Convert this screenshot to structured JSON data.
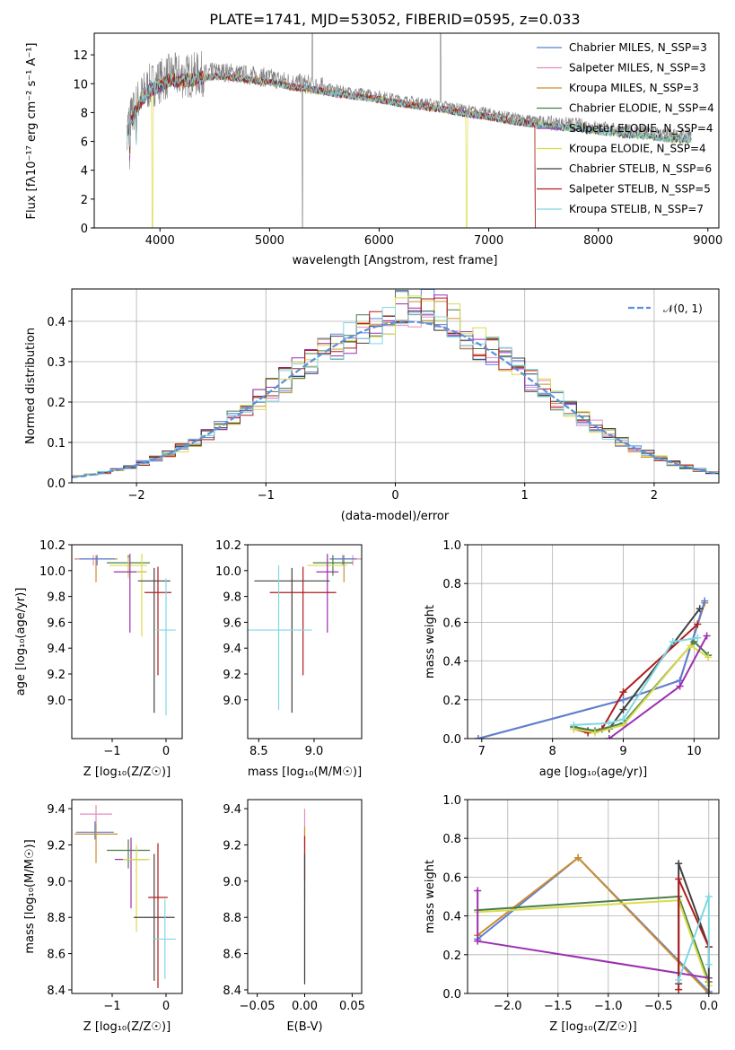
{
  "title": "PLATE=1741, MJD=53052, FIBERID=0595, z=0.033",
  "colors": {
    "Chabrier MILES": "#5b7fd9",
    "Salpeter MILES": "#e68cc0",
    "Kroupa MILES": "#cc8d2e",
    "Chabrier ELODIE": "#4a7d4a",
    "Salpeter ELODIE": "#9c2fb0",
    "Kroupa ELODIE": "#d9dc4a",
    "Chabrier STELIB": "#404040",
    "Salpeter STELIB": "#b01c1c",
    "Kroupa STELIB": "#7fd8e3",
    "data": "#808080",
    "normal": "#5b8fd9"
  },
  "chart_data": [
    {
      "id": "spectrum",
      "type": "line",
      "xlabel": "wavelength [Angstrom, rest frame]",
      "ylabel": "Flux [fλ10⁻¹⁷ erg cm⁻² s⁻¹ A⁻¹]",
      "xlim": [
        3400,
        9100
      ],
      "ylim": [
        0,
        13.5
      ],
      "xticks": [
        4000,
        5000,
        6000,
        7000,
        8000,
        9000
      ],
      "yticks": [
        0,
        2,
        4,
        6,
        8,
        10,
        12
      ],
      "legend_position": "top-right",
      "legend": [
        "Chabrier MILES, N_SSP=3",
        "Salpeter MILES, N_SSP=3",
        "Kroupa MILES, N_SSP=3",
        "Chabrier ELODIE, N_SSP=4",
        "Salpeter ELODIE, N_SSP=4",
        "Kroupa ELODIE, N_SSP=4",
        "Chabrier STELIB, N_SSP=6",
        "Salpeter STELIB, N_SSP=5",
        "Kroupa STELIB, N_SSP=7"
      ],
      "data_spectrum": {
        "x": [
          3700,
          3800,
          3900,
          4000,
          4100,
          4200,
          4300,
          4400,
          4500,
          4600,
          4800,
          5000,
          5200,
          5400,
          5600,
          5800,
          6000,
          6200,
          6400,
          6600,
          6800,
          7000,
          7200,
          7400,
          7600,
          7800,
          8000,
          8200,
          8400,
          8600,
          8800
        ],
        "y": [
          7.0,
          8.8,
          9.8,
          10.2,
          10.6,
          10.5,
          10.6,
          10.7,
          10.8,
          10.8,
          10.6,
          10.4,
          10.1,
          9.9,
          9.6,
          9.4,
          9.2,
          8.9,
          8.7,
          8.5,
          8.2,
          8.0,
          7.7,
          7.5,
          7.3,
          7.2,
          7.0,
          6.8,
          6.7,
          6.5,
          6.4
        ]
      },
      "model_cutoffs": {
        "Salpeter STELIB": 7420,
        "Kroupa MILES": 7420,
        "Chabrier MILES": 7420,
        "Salpeter MILES": 7420
      }
    },
    {
      "id": "residuals",
      "type": "histogram",
      "xlabel": "(data-model)/error",
      "ylabel": "Normed distribution",
      "xlim": [
        -2.5,
        2.5
      ],
      "ylim": [
        0,
        0.48
      ],
      "xticks": [
        -2,
        -1,
        0,
        1,
        2
      ],
      "yticks": [
        0.0,
        0.1,
        0.2,
        0.3,
        0.4
      ],
      "legend": [
        "𝒩(0, 1)"
      ],
      "legend_position": "top-right"
    },
    {
      "id": "Z-age",
      "type": "errorbar",
      "xlabel": "Z [log10(Z/Z☉)]",
      "ylabel": "age [log10(age/yr)]",
      "xlim": [
        -1.75,
        0.3
      ],
      "ylim": [
        8.7,
        10.2
      ],
      "xticks": [
        -1,
        0
      ],
      "yticks": [
        9.0,
        9.2,
        9.4,
        9.6,
        9.8,
        10.0,
        10.2
      ],
      "points": [
        {
          "model": "Kroupa MILES",
          "x": -1.3,
          "y": 10.09,
          "xerr": 0.4,
          "yerr": [
            0.18,
            0.03
          ]
        },
        {
          "model": "Salpeter MILES",
          "x": -1.35,
          "y": 10.09,
          "xerr": 0.3,
          "yerr": [
            0.05,
            0.03
          ]
        },
        {
          "model": "Chabrier MILES",
          "x": -1.28,
          "y": 10.09,
          "xerr": 0.33,
          "yerr": [
            0.05,
            0.03
          ]
        },
        {
          "model": "Chabrier ELODIE",
          "x": -0.7,
          "y": 10.06,
          "xerr": 0.4,
          "yerr": [
            0.1,
            0.06
          ]
        },
        {
          "model": "Kroupa ELODIE",
          "x": -0.7,
          "y": 10.04,
          "xerr": 0.35,
          "yerr": [
            0.1,
            0.06
          ]
        },
        {
          "model": "Salpeter ELODIE",
          "x": -0.67,
          "y": 9.99,
          "xerr": 0.3,
          "yerr": [
            0.47,
            0.14
          ]
        },
        {
          "model": "Kroupa ELODIE",
          "x": -0.45,
          "y": 9.99,
          "xerr": 0.1,
          "yerr": [
            0.5,
            0.14
          ]
        },
        {
          "model": "Chabrier STELIB",
          "x": -0.22,
          "y": 9.92,
          "xerr": 0.3,
          "yerr": [
            1.02,
            0.1
          ]
        },
        {
          "model": "Salpeter STELIB",
          "x": -0.15,
          "y": 9.83,
          "xerr": 0.25,
          "yerr": [
            0.64,
            0.2
          ]
        },
        {
          "model": "Kroupa STELIB",
          "x": 0.0,
          "y": 9.54,
          "xerr": 0.18,
          "yerr": [
            0.66,
            0.4
          ]
        }
      ]
    },
    {
      "id": "mass-age",
      "type": "errorbar",
      "xlabel": "mass [log10(M/M☉)]",
      "ylabel": "",
      "xlim": [
        8.4,
        9.43
      ],
      "ylim": [
        8.7,
        10.2
      ],
      "xticks": [
        8.5,
        9.0
      ],
      "yticks": [
        9.0,
        9.2,
        9.4,
        9.6,
        9.8,
        10.0,
        10.2
      ],
      "points": [
        {
          "model": "Salpeter MILES",
          "x": 9.35,
          "y": 10.09,
          "xerr": 0.12,
          "yerr": [
            0.05,
            0.03
          ]
        },
        {
          "model": "Kroupa MILES",
          "x": 9.27,
          "y": 10.09,
          "xerr": 0.12,
          "yerr": [
            0.18,
            0.03
          ]
        },
        {
          "model": "Chabrier MILES",
          "x": 9.26,
          "y": 10.09,
          "xerr": 0.12,
          "yerr": [
            0.05,
            0.03
          ]
        },
        {
          "model": "Chabrier ELODIE",
          "x": 9.17,
          "y": 10.06,
          "xerr": 0.18,
          "yerr": [
            0.1,
            0.06
          ]
        },
        {
          "model": "Kroupa ELODIE",
          "x": 9.12,
          "y": 10.04,
          "xerr": 0.18,
          "yerr": [
            0.1,
            0.06
          ]
        },
        {
          "model": "Salpeter ELODIE",
          "x": 9.12,
          "y": 9.99,
          "xerr": 0.1,
          "yerr": [
            0.47,
            0.14
          ]
        },
        {
          "model": "Chabrier STELIB",
          "x": 8.8,
          "y": 9.92,
          "xerr": 0.34,
          "yerr": [
            1.02,
            0.1
          ]
        },
        {
          "model": "Salpeter STELIB",
          "x": 8.9,
          "y": 9.83,
          "xerr": 0.3,
          "yerr": [
            0.64,
            0.2
          ]
        },
        {
          "model": "Kroupa STELIB",
          "x": 8.68,
          "y": 9.54,
          "xerr": 0.3,
          "yerr": [
            0.62,
            0.5
          ]
        }
      ]
    },
    {
      "id": "age-weight",
      "type": "line",
      "xlabel": "age [log10(age/yr)]",
      "ylabel": "mass weight",
      "xlim": [
        6.8,
        10.35
      ],
      "ylim": [
        0,
        1.0
      ],
      "xticks": [
        7,
        8,
        9,
        10
      ],
      "yticks": [
        0.0,
        0.2,
        0.4,
        0.6,
        0.8,
        1.0
      ],
      "series": [
        {
          "model": "Kroupa MILES",
          "x": [
            6.95,
            9.0,
            9.8,
            10.15
          ],
          "y": [
            0.0,
            0.2,
            0.3,
            0.7
          ]
        },
        {
          "model": "Chabrier MILES",
          "x": [
            6.95,
            9.0,
            9.8,
            10.15
          ],
          "y": [
            0.0,
            0.2,
            0.3,
            0.71
          ]
        },
        {
          "model": "Chabrier STELIB",
          "x": [
            8.3,
            8.5,
            8.8,
            9.0,
            10.08
          ],
          "y": [
            0.06,
            0.04,
            0.05,
            0.15,
            0.67
          ]
        },
        {
          "model": "Salpeter STELIB",
          "x": [
            8.3,
            8.5,
            8.7,
            9.0,
            10.05
          ],
          "y": [
            0.05,
            0.03,
            0.05,
            0.24,
            0.59
          ]
        },
        {
          "model": "Chabrier ELODIE",
          "x": [
            8.3,
            8.6,
            9.0,
            10.0,
            10.2
          ],
          "y": [
            0.06,
            0.04,
            0.08,
            0.5,
            0.43
          ]
        },
        {
          "model": "Kroupa ELODIE",
          "x": [
            8.3,
            8.6,
            9.0,
            9.95,
            10.2
          ],
          "y": [
            0.05,
            0.03,
            0.07,
            0.48,
            0.42
          ]
        },
        {
          "model": "Salpeter ELODIE",
          "x": [
            8.8,
            9.8,
            10.18
          ],
          "y": [
            0.0,
            0.27,
            0.53
          ]
        },
        {
          "model": "Kroupa STELIB",
          "x": [
            8.3,
            8.8,
            9.0,
            9.7,
            10.05
          ],
          "y": [
            0.07,
            0.08,
            0.1,
            0.5,
            0.52
          ]
        }
      ]
    },
    {
      "id": "Z-mass",
      "type": "errorbar",
      "xlabel": "Z [log10(Z/Z☉)]",
      "ylabel": "mass [log10(M/M☉)]",
      "xlim": [
        -1.75,
        0.3
      ],
      "ylim": [
        8.38,
        9.45
      ],
      "xticks": [
        -1,
        0
      ],
      "yticks": [
        8.4,
        8.6,
        8.8,
        9.0,
        9.2,
        9.4
      ],
      "points": [
        {
          "model": "Salpeter MILES",
          "x": -1.3,
          "y": 9.37,
          "xerr": 0.3,
          "yerr": [
            0.05,
            0.05
          ]
        },
        {
          "model": "Chabrier MILES",
          "x": -1.32,
          "y": 9.27,
          "xerr": 0.35,
          "yerr": [
            0.04,
            0.06
          ]
        },
        {
          "model": "Kroupa MILES",
          "x": -1.3,
          "y": 9.26,
          "xerr": 0.4,
          "yerr": [
            0.16,
            0.06
          ]
        },
        {
          "model": "Chabrier ELODIE",
          "x": -0.7,
          "y": 9.17,
          "xerr": 0.4,
          "yerr": [
            0.1,
            0.06
          ]
        },
        {
          "model": "Salpeter ELODIE",
          "x": -0.65,
          "y": 9.12,
          "xerr": 0.3,
          "yerr": [
            0.27,
            0.12
          ]
        },
        {
          "model": "Kroupa ELODIE",
          "x": -0.55,
          "y": 9.12,
          "xerr": 0.25,
          "yerr": [
            0.4,
            0.08
          ]
        },
        {
          "model": "Chabrier STELIB",
          "x": -0.22,
          "y": 8.8,
          "xerr": 0.38,
          "yerr": [
            0.35,
            0.35
          ]
        },
        {
          "model": "Salpeter STELIB",
          "x": -0.15,
          "y": 8.91,
          "xerr": 0.18,
          "yerr": [
            0.5,
            0.3
          ]
        },
        {
          "model": "Kroupa STELIB",
          "x": -0.02,
          "y": 8.68,
          "xerr": 0.2,
          "yerr": [
            0.22,
            0.22
          ]
        }
      ]
    },
    {
      "id": "ebv-mass",
      "type": "errorbar",
      "xlabel": "E(B-V)",
      "ylabel": "",
      "xlim": [
        -0.06,
        0.06
      ],
      "ylim": [
        8.38,
        9.45
      ],
      "xticks": [
        -0.05,
        0.0,
        0.05
      ],
      "yticks": [
        8.4,
        8.6,
        8.8,
        9.0,
        9.2,
        9.4
      ],
      "points": [
        {
          "model": "Salpeter MILES",
          "x": 0.0,
          "y": 9.3,
          "xerr": 0.0,
          "yerr": [
            0.12,
            0.1
          ]
        },
        {
          "model": "Kroupa MILES",
          "x": 0.0,
          "y": 9.2,
          "xerr": 0.0,
          "yerr": [
            0.3,
            0.1
          ]
        },
        {
          "model": "Salpeter STELIB",
          "x": 0.0,
          "y": 9.1,
          "xerr": 0.0,
          "yerr": [
            0.1,
            0.15
          ]
        },
        {
          "model": "Kroupa STELIB",
          "x": 0.0,
          "y": 8.7,
          "xerr": 0.0,
          "yerr": [
            0.25,
            0.25
          ]
        },
        {
          "model": "Chabrier STELIB",
          "x": 0.0,
          "y": 8.85,
          "xerr": 0.0,
          "yerr": [
            0.42,
            0.3
          ]
        }
      ]
    },
    {
      "id": "Z-weight",
      "type": "line",
      "xlabel": "Z [log10(Z/Z☉)]",
      "ylabel": "mass weight",
      "xlim": [
        -2.4,
        0.1
      ],
      "ylim": [
        0,
        1.0
      ],
      "xticks": [
        -2.0,
        -1.5,
        -1.0,
        -0.5,
        0.0
      ],
      "yticks": [
        0.0,
        0.2,
        0.4,
        0.6,
        0.8,
        1.0
      ],
      "series": [
        {
          "model": "Chabrier MILES",
          "x": [
            -2.3,
            -1.3,
            0.0
          ],
          "y": [
            0.28,
            0.7,
            0.01
          ]
        },
        {
          "model": "Kroupa MILES",
          "x": [
            -2.3,
            -1.3,
            0.0
          ],
          "y": [
            0.3,
            0.7,
            0.0
          ]
        },
        {
          "model": "Chabrier ELODIE",
          "x": [
            -2.3,
            -0.3,
            0.0
          ],
          "y": [
            0.43,
            0.5,
            0.06
          ]
        },
        {
          "model": "Kroupa ELODIE",
          "x": [
            -2.3,
            -0.3,
            0.0
          ],
          "y": [
            0.42,
            0.48,
            0.04
          ]
        },
        {
          "model": "Salpeter ELODIE",
          "x": [
            -2.3,
            -2.3,
            0.0
          ],
          "y": [
            0.53,
            0.27,
            0.08
          ]
        },
        {
          "model": "Chabrier STELIB",
          "x": [
            -0.3,
            -0.3,
            0.0,
            0.0
          ],
          "y": [
            0.05,
            0.67,
            0.24,
            0.0
          ]
        },
        {
          "model": "Salpeter STELIB",
          "x": [
            -0.3,
            -0.3,
            0.0
          ],
          "y": [
            0.02,
            0.59,
            0.24
          ]
        },
        {
          "model": "Kroupa STELIB",
          "x": [
            -0.3,
            0.0,
            0.0
          ],
          "y": [
            0.07,
            0.5,
            0.15
          ]
        }
      ]
    }
  ]
}
